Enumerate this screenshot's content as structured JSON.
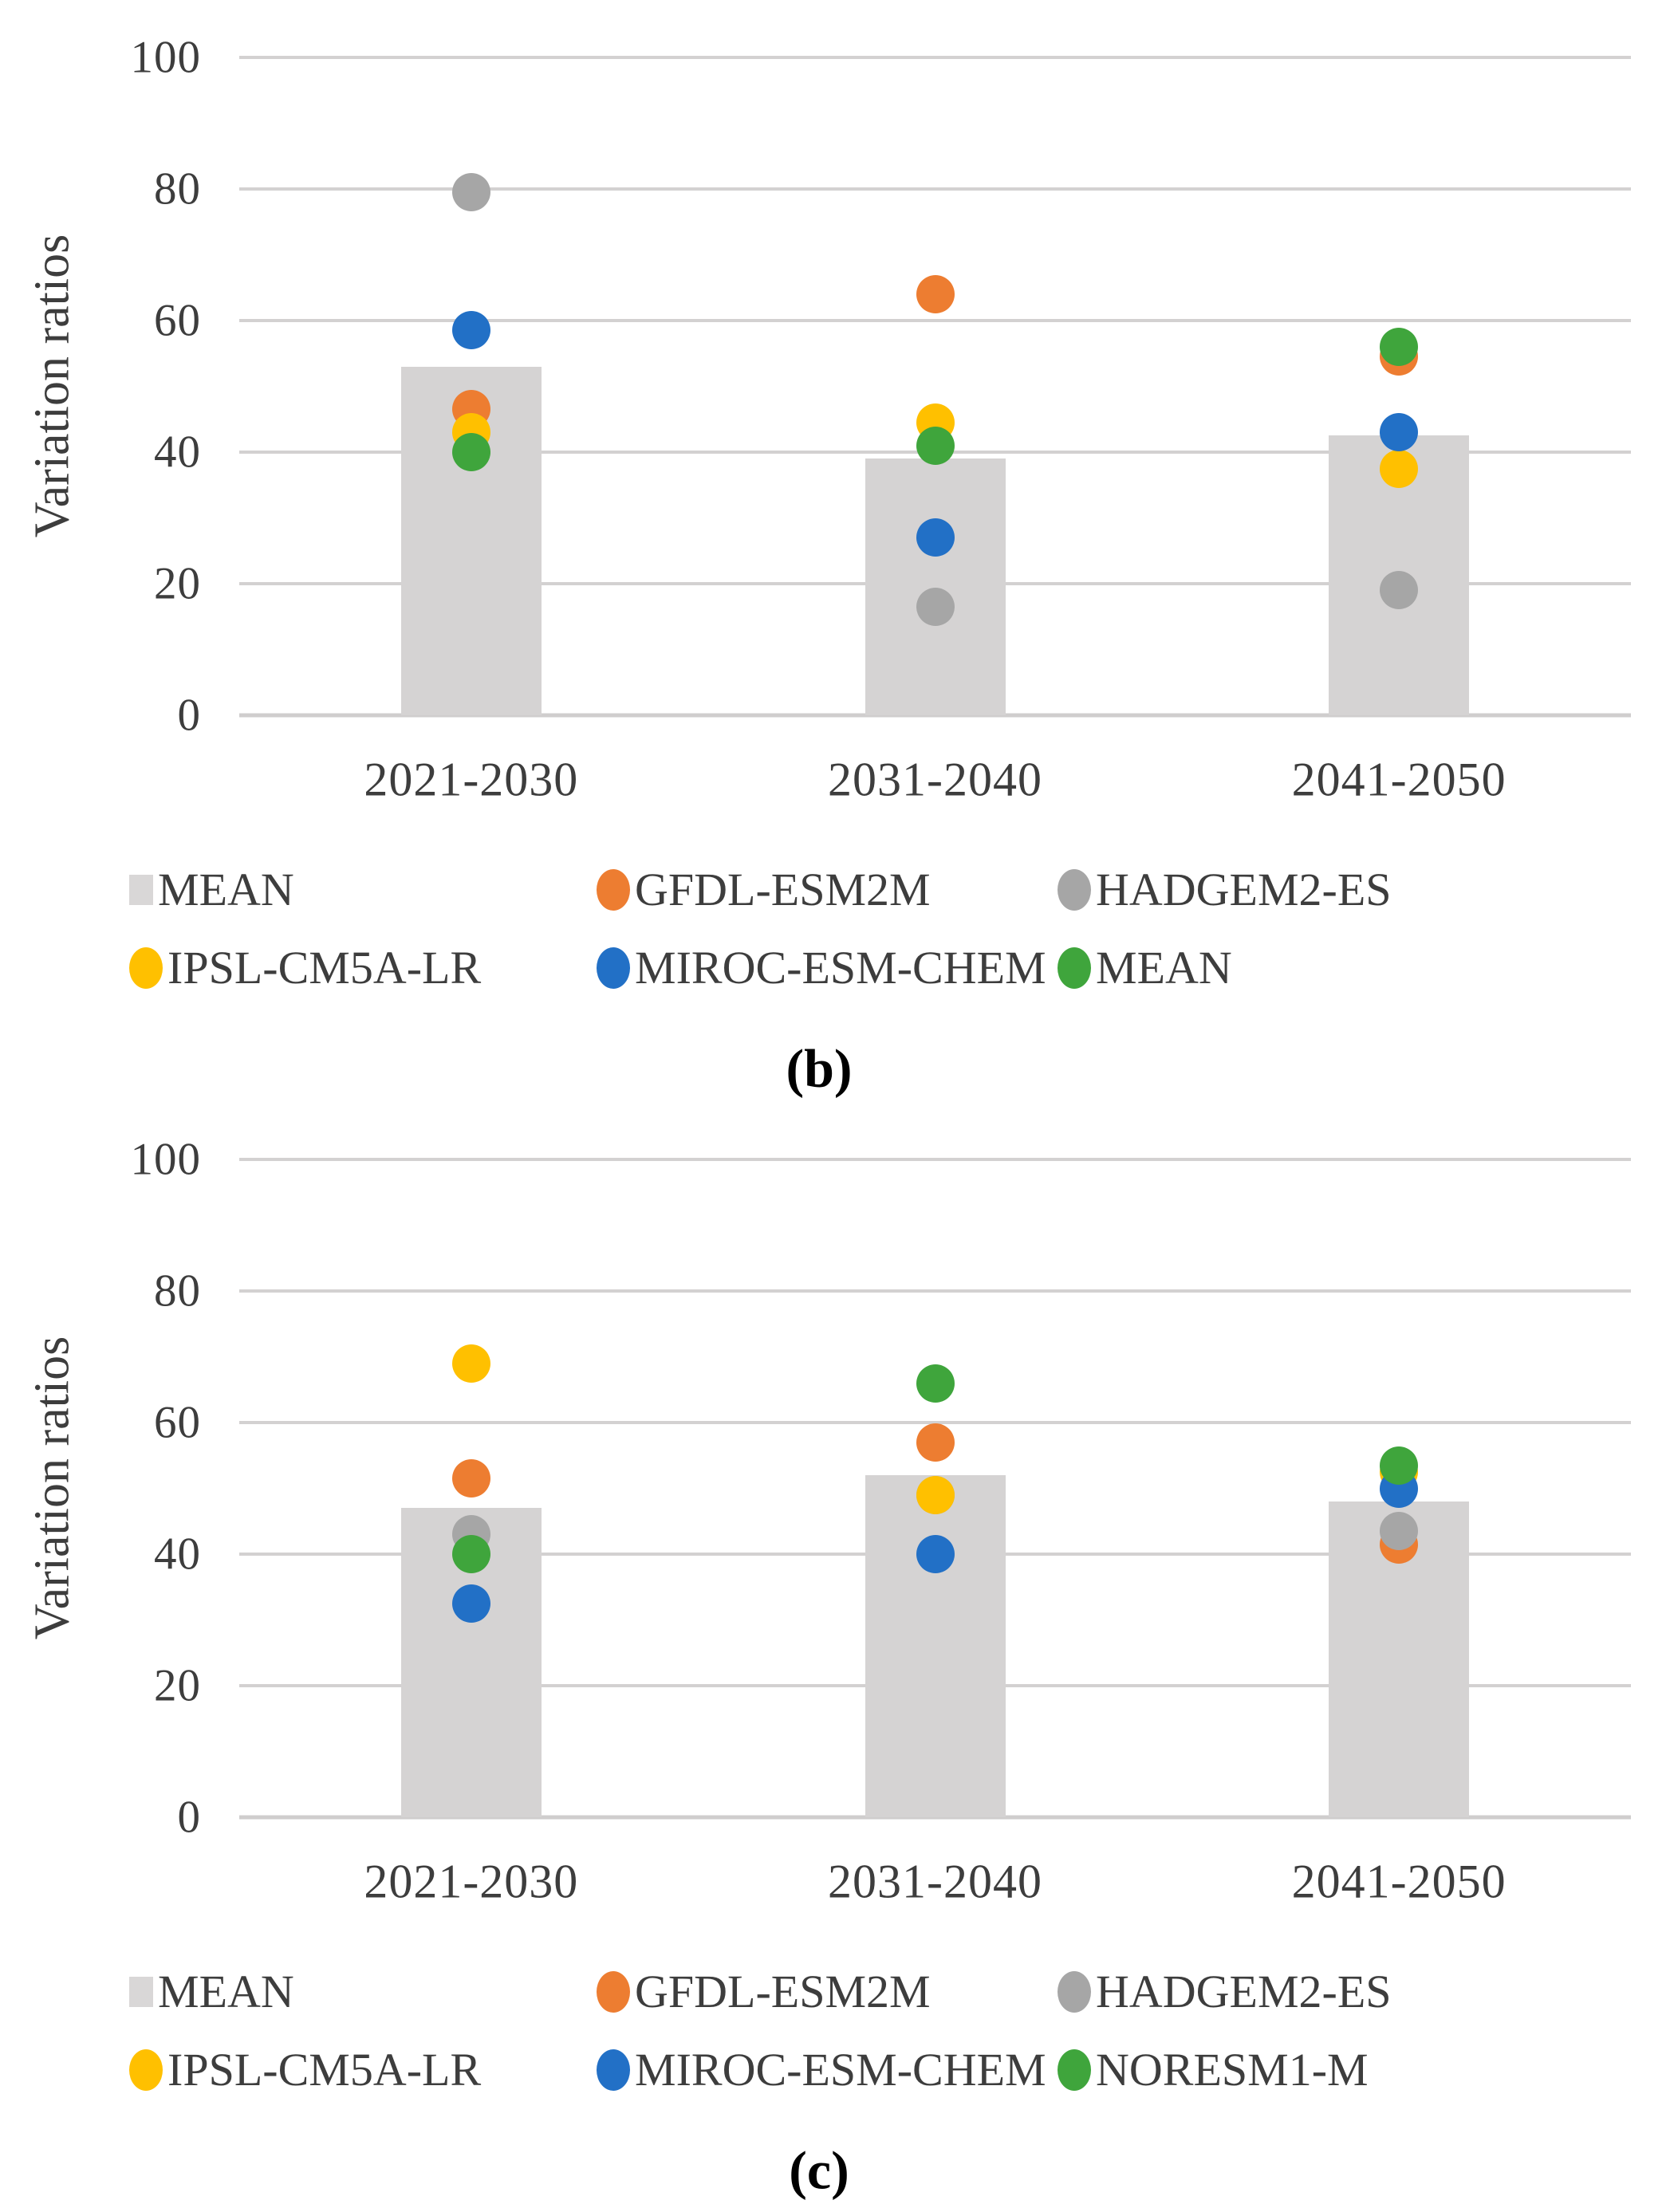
{
  "figure_title": "",
  "accent_colors": {
    "bar_fill": "#d5d3d3",
    "gridline": "#d3d1d1",
    "text": "#3d3d3d"
  },
  "chart_data": [
    {
      "id": "b",
      "type": "combo-bar-scatter",
      "caption": "(b)",
      "ylabel": "Variation ratios",
      "xlabel": "",
      "ylim": [
        0,
        100
      ],
      "yticks": [
        0,
        20,
        40,
        60,
        80,
        100
      ],
      "grid": true,
      "legend_position": "bottom",
      "categories": [
        "2021-2030",
        "2031-2040",
        "2041-2050"
      ],
      "bar_series": {
        "name": "MEAN",
        "color": "#d5d3d3",
        "values": [
          53,
          39,
          42.5
        ]
      },
      "scatter_series": [
        {
          "name": "GFDL-ESM2M",
          "color": "#ed7d31",
          "values": [
            46.5,
            64,
            54.5
          ]
        },
        {
          "name": "HADGEM2-ES",
          "color": "#a6a6a6",
          "values": [
            79.5,
            16.5,
            19
          ]
        },
        {
          "name": "IPSL-CM5A-LR",
          "color": "#ffc000",
          "values": [
            43,
            44.5,
            37.5
          ]
        },
        {
          "name": "MIROC-ESM-CHEM",
          "color": "#2270c6",
          "values": [
            58.5,
            27,
            43
          ]
        },
        {
          "name": "MEAN",
          "color": "#3fa53c",
          "values": [
            40,
            41,
            56
          ]
        }
      ],
      "legend_rows": [
        [
          {
            "label": "MEAN",
            "marker": "square",
            "color": "#d9d7d7"
          },
          {
            "label": "GFDL-ESM2M",
            "marker": "circle",
            "color": "#ed7d31"
          },
          {
            "label": "HADGEM2-ES",
            "marker": "circle",
            "color": "#a6a6a6"
          }
        ],
        [
          {
            "label": "IPSL-CM5A-LR",
            "marker": "circle",
            "color": "#ffc000"
          },
          {
            "label": "MIROC-ESM-CHEM",
            "marker": "circle",
            "color": "#2270c6"
          },
          {
            "label": "MEAN",
            "marker": "circle",
            "color": "#3fa53c"
          }
        ]
      ]
    },
    {
      "id": "c",
      "type": "combo-bar-scatter",
      "caption": "(c)",
      "ylabel": "Variation ratios",
      "xlabel": "",
      "ylim": [
        0,
        100
      ],
      "yticks": [
        0,
        20,
        40,
        60,
        80,
        100
      ],
      "grid": true,
      "legend_position": "bottom",
      "categories": [
        "2021-2030",
        "2031-2040",
        "2041-2050"
      ],
      "bar_series": {
        "name": "MEAN",
        "color": "#d5d3d3",
        "values": [
          47,
          52,
          48
        ]
      },
      "scatter_series": [
        {
          "name": "GFDL-ESM2M",
          "color": "#ed7d31",
          "values": [
            51.5,
            57,
            41.5
          ]
        },
        {
          "name": "HADGEM2-ES",
          "color": "#a6a6a6",
          "values": [
            43,
            49,
            43.5
          ]
        },
        {
          "name": "IPSL-CM5A-LR",
          "color": "#ffc000",
          "values": [
            69,
            49,
            52.5
          ]
        },
        {
          "name": "MIROC-ESM-CHEM",
          "color": "#2270c6",
          "values": [
            32.5,
            40,
            50
          ]
        },
        {
          "name": "NORESM1-M",
          "color": "#3fa53c",
          "values": [
            40,
            66,
            53.5
          ]
        }
      ],
      "legend_rows": [
        [
          {
            "label": "MEAN",
            "marker": "square",
            "color": "#d9d7d7"
          },
          {
            "label": "GFDL-ESM2M",
            "marker": "circle",
            "color": "#ed7d31"
          },
          {
            "label": "HADGEM2-ES",
            "marker": "circle",
            "color": "#a6a6a6"
          }
        ],
        [
          {
            "label": "IPSL-CM5A-LR",
            "marker": "circle",
            "color": "#ffc000"
          },
          {
            "label": "MIROC-ESM-CHEM",
            "marker": "circle",
            "color": "#2270c6"
          },
          {
            "label": "NORESM1-M",
            "marker": "circle",
            "color": "#3fa53c"
          }
        ]
      ]
    }
  ]
}
